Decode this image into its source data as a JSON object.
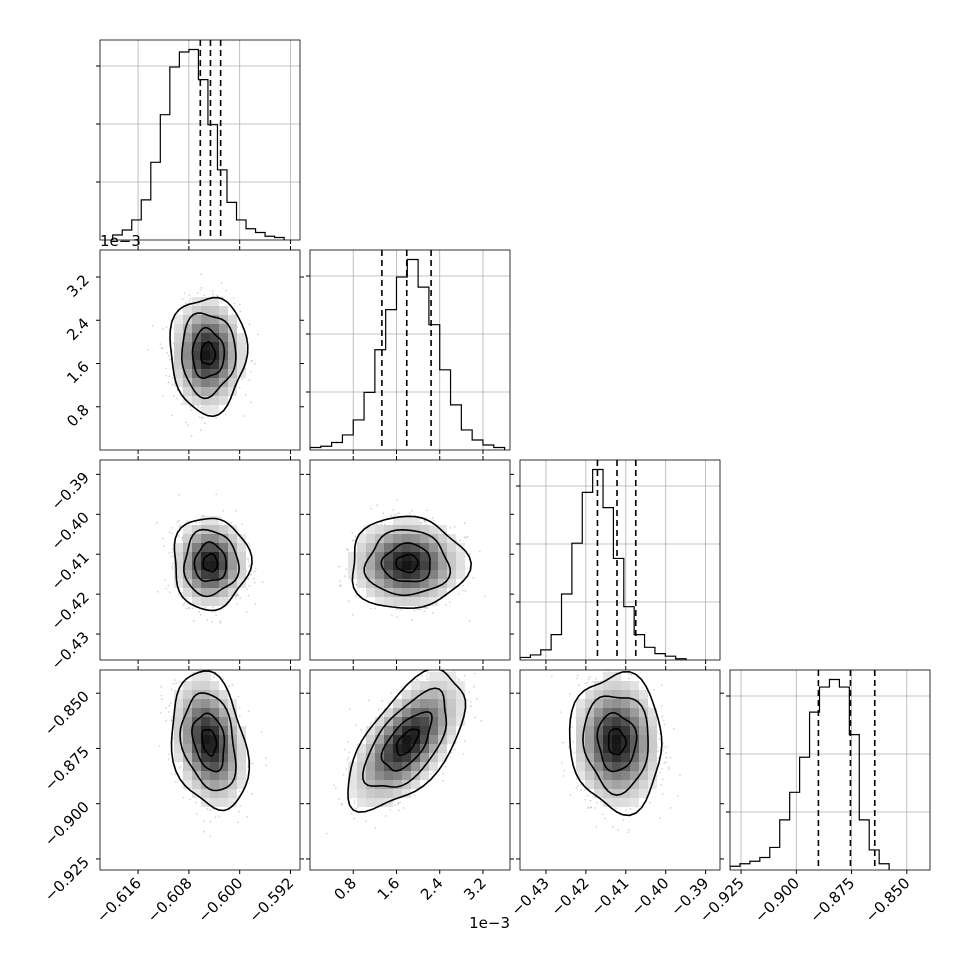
{
  "figure": {
    "layout": "4x4 lower-triangular corner plot",
    "background": "#ffffff",
    "line_color": "#000000",
    "grid_color": "#b0b0b0",
    "density_color": "#000000"
  },
  "chart_data": {
    "type": "corner",
    "grid": true,
    "parameters": [
      {
        "index": 0,
        "range": [
          -0.622,
          -0.5905
        ],
        "ticks": [
          -0.616,
          -0.608,
          -0.6,
          -0.592
        ],
        "tick_labels": [
          "−0.616",
          "−0.608",
          "−0.600",
          "−0.592"
        ],
        "offset_label": "",
        "histogram": {
          "edges_start": -0.62,
          "bin_width": 0.0015,
          "counts": [
            4,
            8,
            16,
            32,
            62,
            100,
            138,
            150,
            152,
            128,
            92,
            56,
            30,
            16,
            9,
            6,
            3,
            2
          ],
          "quantiles": [
            -0.6062,
            -0.6046,
            -0.603
          ]
        }
      },
      {
        "index": 1,
        "range": [
          0.0,
          0.0037
        ],
        "ticks": [
          0.0008,
          0.0016,
          0.0024,
          0.0032
        ],
        "tick_labels": [
          "0.8",
          "1.6",
          "2.4",
          "3.2"
        ],
        "offset_label": "1e−3",
        "histogram": {
          "edges_start": 0.0,
          "bin_width": 0.0002,
          "counts": [
            2,
            3,
            6,
            12,
            24,
            46,
            80,
            112,
            138,
            152,
            130,
            100,
            64,
            36,
            16,
            8,
            4,
            2
          ],
          "quantiles": [
            0.00133,
            0.00179,
            0.00224
          ]
        }
      },
      {
        "index": 2,
        "range": [
          -0.4365,
          -0.3864
        ],
        "ticks": [
          -0.43,
          -0.42,
          -0.41,
          -0.4,
          -0.39
        ],
        "tick_labels": [
          "−0.43",
          "−0.42",
          "−0.41",
          "−0.40",
          "−0.39"
        ],
        "offset_label": "",
        "histogram": {
          "edges_start": -0.4365,
          "bin_width": 0.0026,
          "counts": [
            2,
            4,
            8,
            20,
            52,
            92,
            132,
            150,
            120,
            80,
            42,
            20,
            10,
            5,
            3,
            1
          ],
          "quantiles": [
            -0.4171,
            -0.4122,
            -0.4075
          ]
        }
      },
      {
        "index": 3,
        "range": [
          -0.93,
          -0.8395
        ],
        "ticks": [
          -0.925,
          -0.9,
          -0.875,
          -0.85
        ],
        "tick_labels": [
          "−0.925",
          "−0.900",
          "−0.875",
          "−0.850"
        ],
        "offset_label": "",
        "histogram": {
          "edges_start": -0.93,
          "bin_width": 0.0045,
          "counts": [
            3,
            5,
            7,
            10,
            18,
            40,
            62,
            90,
            126,
            146,
            152,
            146,
            108,
            40,
            16,
            5
          ],
          "quantiles": [
            -0.89,
            -0.8755,
            -0.8645
          ]
        }
      }
    ],
    "pairs": [
      {
        "x": 0,
        "y": 1,
        "center": [
          -0.605,
          0.00178
        ],
        "sigma": [
          0.0025,
          0.00045
        ],
        "corr": 0.0
      },
      {
        "x": 0,
        "y": 2,
        "center": [
          -0.6046,
          -0.4122
        ],
        "sigma": [
          0.0025,
          0.0048
        ],
        "corr": 0.0
      },
      {
        "x": 1,
        "y": 2,
        "center": [
          0.0018,
          -0.4123
        ],
        "sigma": [
          0.00045,
          0.0048
        ],
        "corr": 0.0
      },
      {
        "x": 0,
        "y": 3,
        "center": [
          -0.6048,
          -0.872
        ],
        "sigma": [
          0.0025,
          0.013
        ],
        "corr": -0.25
      },
      {
        "x": 1,
        "y": 3,
        "center": [
          0.0018,
          -0.872
        ],
        "sigma": [
          0.00045,
          0.013
        ],
        "corr": 0.6
      },
      {
        "x": 2,
        "y": 3,
        "center": [
          -0.4123,
          -0.872
        ],
        "sigma": [
          0.0048,
          0.013
        ],
        "corr": -0.05
      }
    ]
  }
}
